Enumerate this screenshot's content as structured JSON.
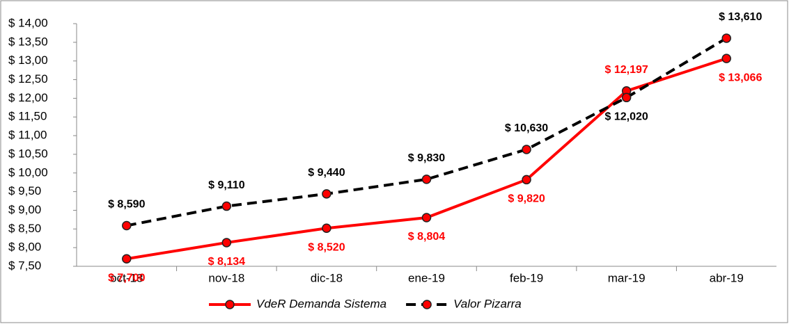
{
  "chart_data": {
    "type": "line",
    "categories": [
      "oct-18",
      "nov-18",
      "dic-18",
      "ene-19",
      "feb-19",
      "mar-19",
      "abr-19"
    ],
    "series": [
      {
        "name": "VdeR Demanda Sistema",
        "color": "#ff0000",
        "dash": false,
        "values": [
          7.7,
          8.134,
          8.52,
          8.804,
          9.82,
          12.197,
          13.066
        ],
        "value_labels": [
          "$ 7,700",
          "$ 8,134",
          "$ 8,520",
          "$ 8,804",
          "$ 9,820",
          "$ 12,197",
          "$ 13,066"
        ]
      },
      {
        "name": "Valor Pizarra",
        "color": "#000000",
        "dash": true,
        "values": [
          8.59,
          9.11,
          9.44,
          9.83,
          10.63,
          12.02,
          13.61
        ],
        "value_labels": [
          "$ 8,590",
          "$ 9,110",
          "$ 9,440",
          "$ 9,830",
          "$ 10,630",
          "$ 12,020",
          "$ 13,610"
        ]
      }
    ],
    "ylim": [
      7.5,
      14
    ],
    "yticks": [
      {
        "value": 7.5,
        "label": "$ 7,50"
      },
      {
        "value": 8,
        "label": "$ 8,00"
      },
      {
        "value": 8.5,
        "label": "$ 8,50"
      },
      {
        "value": 9,
        "label": "$ 9,00"
      },
      {
        "value": 9.5,
        "label": "$ 9,50"
      },
      {
        "value": 10,
        "label": "$ 10,00"
      },
      {
        "value": 10.5,
        "label": "$ 10,50"
      },
      {
        "value": 11,
        "label": "$ 11,00"
      },
      {
        "value": 11.5,
        "label": "$ 11,50"
      },
      {
        "value": 12,
        "label": "$ 12,00"
      },
      {
        "value": 12.5,
        "label": "$ 12,50"
      },
      {
        "value": 13,
        "label": "$ 13,00"
      },
      {
        "value": 13.5,
        "label": "$ 13,50"
      },
      {
        "value": 14,
        "label": "$ 14,00"
      }
    ],
    "grid": false,
    "legend": "bottom"
  }
}
